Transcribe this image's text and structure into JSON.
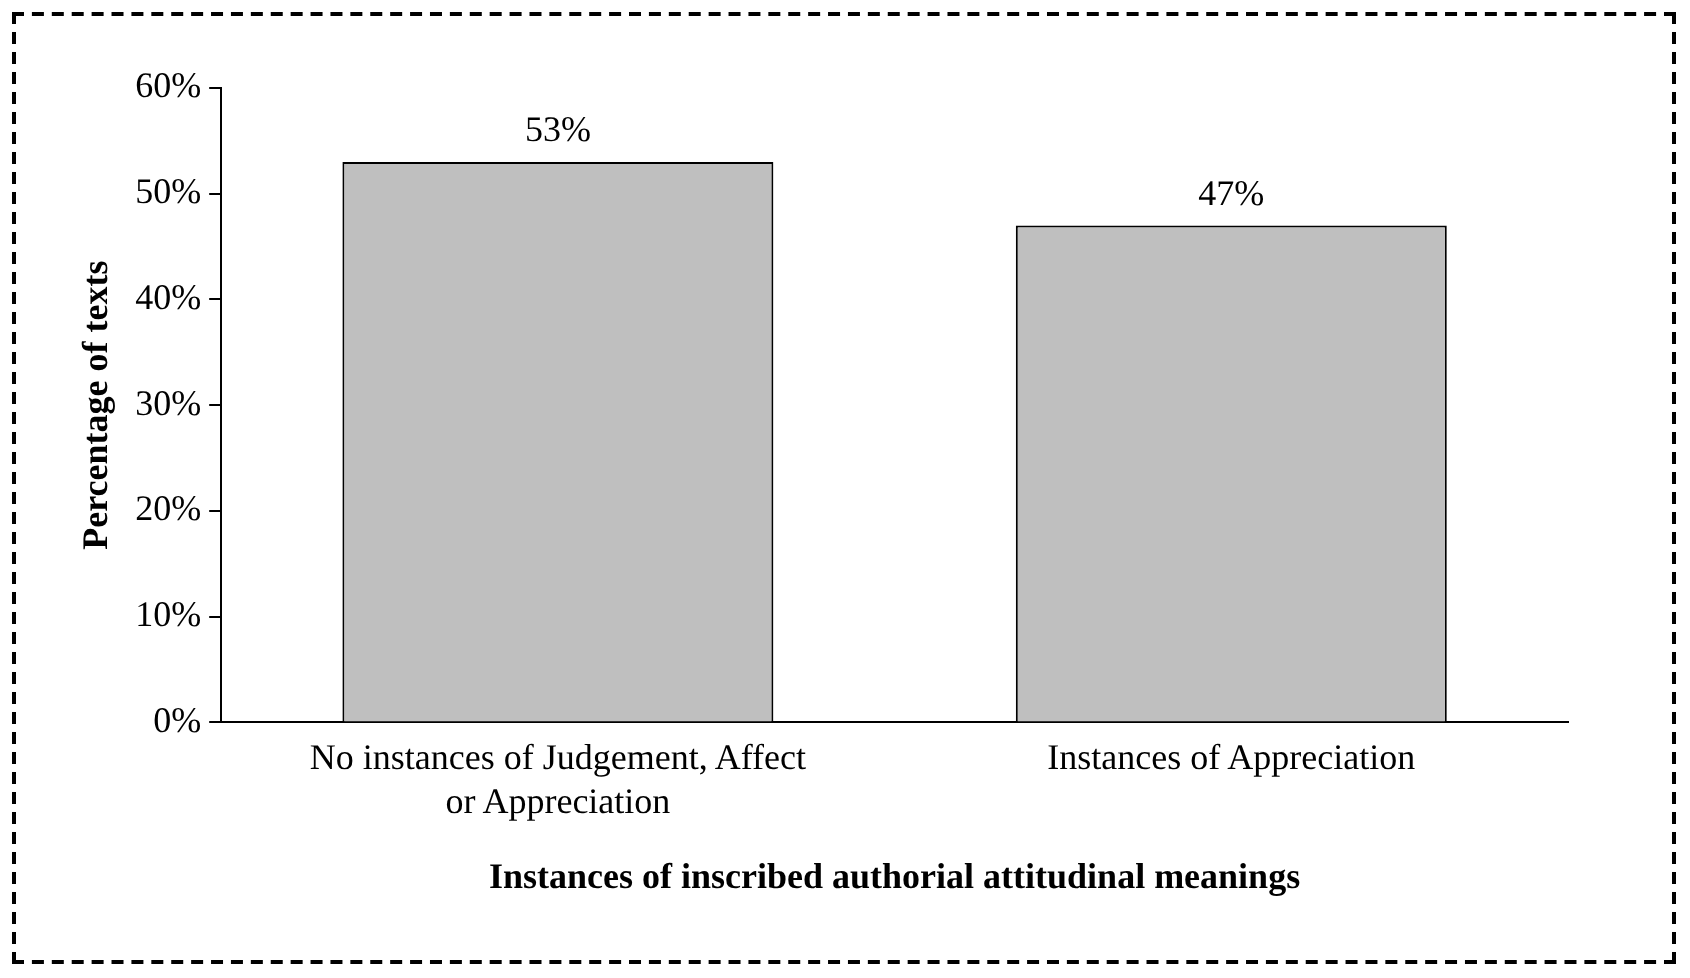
{
  "chart_data": {
    "type": "bar",
    "xlabel": "Instances of inscribed authorial attitudinal meanings",
    "ylabel": "Percentage of texts",
    "categories": [
      "No instances of Judgement, Affect or Appreciation",
      "Instances of Appreciation"
    ],
    "values": [
      53,
      47
    ],
    "color": "#bfbfbf",
    "data_labels": true,
    "value_labels": [
      "53%",
      "47%"
    ],
    "ylim": [
      0,
      60
    ],
    "yticks": [
      {
        "value": 0,
        "label": "0%"
      },
      {
        "value": 10,
        "label": "10%"
      },
      {
        "value": 20,
        "label": "20%"
      },
      {
        "value": 30,
        "label": "30%"
      },
      {
        "value": 40,
        "label": "40%"
      },
      {
        "value": 50,
        "label": "50%"
      },
      {
        "value": 60,
        "label": "60%"
      }
    ],
    "grid": false,
    "legend": false
  }
}
